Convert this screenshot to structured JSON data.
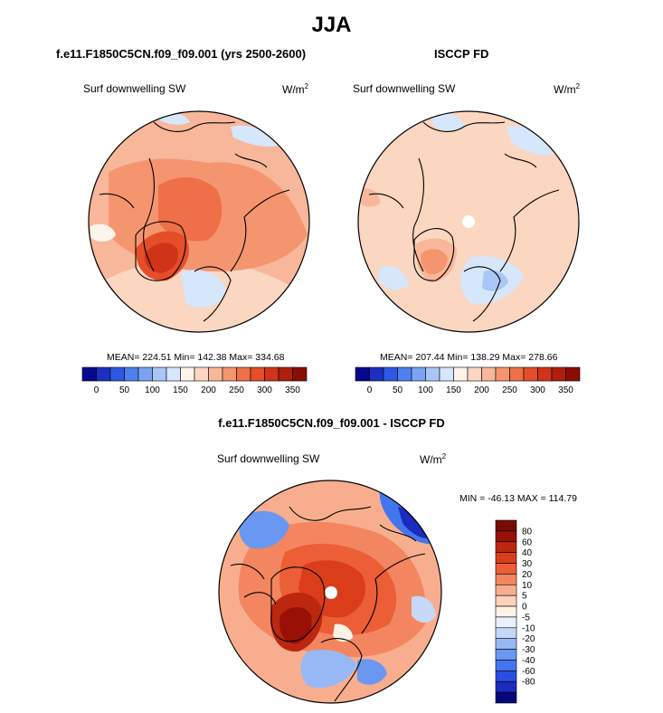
{
  "figure": {
    "title": "JJA",
    "season": "JJA"
  },
  "panels": {
    "model": {
      "title": "f.e11.F1850C5CN.f09_f09.001 (yrs 2500-2600)",
      "variable": "Surf downwelling SW",
      "units_base": "W/m",
      "units_exp": "2",
      "stats": "MEAN= 224.51  Min= 142.38  Max= 334.68"
    },
    "obs": {
      "title": "ISCCP FD",
      "variable": "Surf downwelling SW",
      "units_base": "W/m",
      "units_exp": "2",
      "stats": "MEAN= 207.44  Min= 138.29  Max= 278.66"
    },
    "diff": {
      "title": "f.e11.F1850C5CN.f09_f09.001 - ISCCP FD",
      "variable": "Surf downwelling SW",
      "units_base": "W/m",
      "units_exp": "2",
      "stats": "MIN = -46.13 MAX = 114.79"
    }
  },
  "colors": {
    "abs_scale": [
      "#08088f",
      "#1c2fc2",
      "#2e58e4",
      "#4f80ef",
      "#7aa3f3",
      "#a9c6f7",
      "#d6e6fb",
      "#fdf4ec",
      "#fbd6c0",
      "#f8b79a",
      "#f5956f",
      "#ee6f48",
      "#e44e28",
      "#cf3418",
      "#ae1f0d",
      "#8a0e05"
    ],
    "diff_scale": [
      "#06067f",
      "#1a2bbd",
      "#2a4de0",
      "#4376ee",
      "#6a97f1",
      "#98b8f5",
      "#c5d8f9",
      "#e9f1fd",
      "#fdf2e6",
      "#fbd2ba",
      "#f8ae8e",
      "#f38660",
      "#eb5e36",
      "#db3d1b",
      "#bc2710",
      "#991106",
      "#7a0b03"
    ],
    "coast": "#000000",
    "pole_hole": "#ffffff"
  },
  "chart_data": [
    {
      "type": "heatmap",
      "projection": "north polar stereographic",
      "title": "f.e11.F1850C5CN.f09_f09.001 (yrs 2500-2600)",
      "variable": "Surf downwelling SW",
      "units": "W/m2",
      "mean": 224.51,
      "min": 142.38,
      "max": 334.68,
      "levels": [
        0,
        25,
        50,
        75,
        100,
        125,
        150,
        175,
        200,
        225,
        250,
        275,
        300,
        325,
        350
      ]
    },
    {
      "type": "heatmap",
      "projection": "north polar stereographic",
      "title": "ISCCP FD",
      "variable": "Surf downwelling SW",
      "units": "W/m2",
      "mean": 207.44,
      "min": 138.29,
      "max": 278.66,
      "levels": [
        0,
        25,
        50,
        75,
        100,
        125,
        150,
        175,
        200,
        225,
        250,
        275,
        300,
        325,
        350
      ]
    },
    {
      "type": "heatmap",
      "projection": "north polar stereographic",
      "title": "f.e11.F1850C5CN.f09_f09.001 - ISCCP FD",
      "variable": "Surf downwelling SW",
      "units": "W/m2",
      "min": -46.13,
      "max": 114.79,
      "levels": [
        -80,
        -60,
        -40,
        -30,
        -20,
        -10,
        -5,
        0,
        5,
        10,
        20,
        30,
        40,
        60,
        80
      ]
    }
  ],
  "colorbar_abs": {
    "tick_labels": [
      "0",
      "50",
      "100",
      "150",
      "200",
      "250",
      "300",
      "350"
    ]
  },
  "colorbar_diff": {
    "tick_labels": [
      "80",
      "60",
      "40",
      "30",
      "20",
      "10",
      "5",
      "0",
      "-5",
      "-10",
      "-20",
      "-30",
      "-40",
      "-60",
      "-80"
    ]
  }
}
